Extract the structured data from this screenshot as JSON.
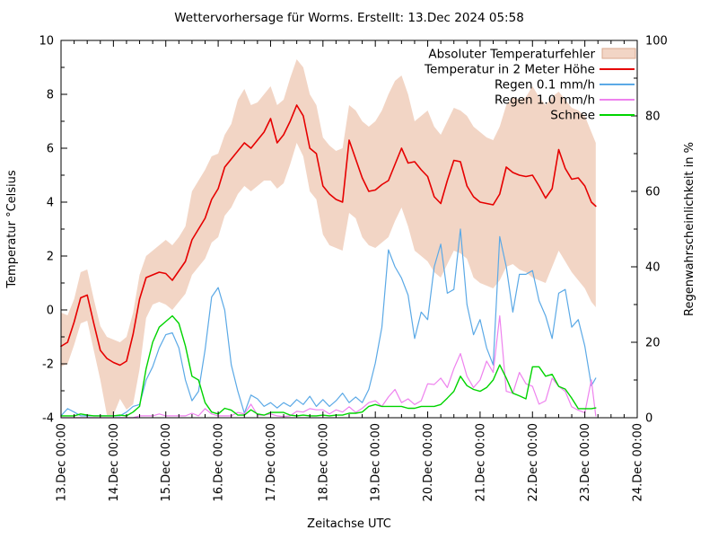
{
  "title": "Wettervorhersage für Worms. Erstellt: 13.Dec 2024 05:58",
  "axes": {
    "x": {
      "label": "Zeitachse UTC",
      "tick_labels": [
        "13.Dec 00:00",
        "14.Dec 00:00",
        "15.Dec 00:00",
        "16.Dec 00:00",
        "17.Dec 00:00",
        "18.Dec 00:00",
        "19.Dec 00:00",
        "20.Dec 00:00",
        "21.Dec 00:00",
        "22.Dec 00:00",
        "23.Dec 00:00",
        "24.Dec 00:00"
      ],
      "total_hours": 264,
      "minor_tick_hours": 6
    },
    "y_left": {
      "label": "Temperatur °Celsius",
      "min": -4,
      "max": 10,
      "tick_labels": [
        "-4",
        "-2",
        "0",
        "2",
        "4",
        "6",
        "8",
        "10"
      ],
      "major_step": 2,
      "minor_step": 1
    },
    "y_right": {
      "label": "Regenwahrscheinlichkeit in %",
      "min": 0,
      "max": 100,
      "tick_labels": [
        "0",
        "20",
        "40",
        "60",
        "80",
        "100"
      ],
      "major_step": 20,
      "minor_step": 10
    }
  },
  "legend": [
    {
      "label": "Absoluter Temperaturfehler",
      "swatch": "band",
      "color": "#f2d5c5",
      "border": "#d9a98f"
    },
    {
      "label": "Temperatur in 2 Meter Höhe",
      "swatch": "line",
      "color": "#e60000"
    },
    {
      "label": "Regen 0.1 mm/h",
      "swatch": "line",
      "color": "#5ba9e6"
    },
    {
      "label": "Regen 1.0 mm/h",
      "swatch": "line",
      "color": "#ee82ee"
    },
    {
      "label": "Schnee",
      "swatch": "line",
      "color": "#00d400"
    }
  ],
  "colors": {
    "band_fill": "#f2d5c5",
    "band_border": "#d9a98f",
    "temperature": "#e60000",
    "rain01": "#5ba9e6",
    "rain10": "#ee82ee",
    "snow": "#00d400",
    "axis": "#000000",
    "background": "#ffffff"
  },
  "chart_data": {
    "type": "line",
    "x_unit": "hours since 13.Dec 2024 00:00 UTC",
    "x_range_hours": [
      0,
      264
    ],
    "data_end_hour": 245,
    "grid": false,
    "legend_position": "top-right-inside",
    "x": [
      0,
      3,
      6,
      9,
      12,
      15,
      18,
      21,
      24,
      27,
      30,
      33,
      36,
      39,
      42,
      45,
      48,
      51,
      54,
      57,
      60,
      63,
      66,
      69,
      72,
      75,
      78,
      81,
      84,
      87,
      90,
      93,
      96,
      99,
      102,
      105,
      108,
      111,
      114,
      117,
      120,
      123,
      126,
      129,
      132,
      135,
      138,
      141,
      144,
      147,
      150,
      153,
      156,
      159,
      162,
      165,
      168,
      171,
      174,
      177,
      180,
      183,
      186,
      189,
      192,
      195,
      198,
      201,
      204,
      207,
      210,
      213,
      216,
      219,
      222,
      225,
      228,
      231,
      234,
      237,
      240,
      243,
      245
    ],
    "series": [
      {
        "name": "Absoluter Temperaturfehler",
        "type": "band",
        "axis": "left",
        "lower": [
          -2.1,
          -2.0,
          -1.3,
          -0.5,
          -0.4,
          -1.5,
          -2.6,
          -3.9,
          -3.9,
          -3.3,
          -3.7,
          -3.5,
          -2.2,
          -0.3,
          0.2,
          0.3,
          0.2,
          0.0,
          0.3,
          0.6,
          1.3,
          1.6,
          1.9,
          2.5,
          2.7,
          3.5,
          3.8,
          4.3,
          4.6,
          4.4,
          4.6,
          4.8,
          4.8,
          4.5,
          4.7,
          5.4,
          6.2,
          5.7,
          4.4,
          4.1,
          2.8,
          2.4,
          2.3,
          2.2,
          3.6,
          3.4,
          2.7,
          2.4,
          2.3,
          2.5,
          2.7,
          3.3,
          3.8,
          3.1,
          2.2,
          2.0,
          1.8,
          1.4,
          1.2,
          1.7,
          2.2,
          2.1,
          1.9,
          1.2,
          1.0,
          0.9,
          0.8,
          1.1,
          1.6,
          1.7,
          1.5,
          1.4,
          1.2,
          1.1,
          1.0,
          1.6,
          2.2,
          1.8,
          1.4,
          1.1,
          0.8,
          0.3,
          0.1
        ],
        "upper": [
          -0.1,
          -0.2,
          0.4,
          1.4,
          1.5,
          0.4,
          -0.6,
          -1.0,
          -1.1,
          -1.2,
          -1.0,
          -0.1,
          1.3,
          2.0,
          2.2,
          2.4,
          2.6,
          2.4,
          2.7,
          3.1,
          4.4,
          4.8,
          5.2,
          5.7,
          5.8,
          6.5,
          6.9,
          7.8,
          8.2,
          7.6,
          7.7,
          8.0,
          8.3,
          7.6,
          7.8,
          8.6,
          9.3,
          9.0,
          8.0,
          7.6,
          6.4,
          6.1,
          5.9,
          6.0,
          7.6,
          7.4,
          7.0,
          6.8,
          7.0,
          7.4,
          8.0,
          8.5,
          8.7,
          8.0,
          7.0,
          7.2,
          7.4,
          6.8,
          6.5,
          7.0,
          7.5,
          7.4,
          7.2,
          6.8,
          6.6,
          6.4,
          6.3,
          6.8,
          7.6,
          7.9,
          7.8,
          7.9,
          8.3,
          7.9,
          7.6,
          7.9,
          8.1,
          7.8,
          7.5,
          7.4,
          7.2,
          6.6,
          6.2
        ]
      },
      {
        "name": "Temperatur in 2 Meter Höhe",
        "type": "line",
        "axis": "left",
        "values": [
          -1.35,
          -1.2,
          -0.45,
          0.45,
          0.55,
          -0.5,
          -1.5,
          -1.8,
          -1.95,
          -2.05,
          -1.9,
          -0.9,
          0.4,
          1.2,
          1.3,
          1.4,
          1.35,
          1.1,
          1.45,
          1.8,
          2.6,
          3.0,
          3.4,
          4.1,
          4.5,
          5.3,
          5.6,
          5.9,
          6.2,
          6.0,
          6.3,
          6.6,
          7.1,
          6.2,
          6.5,
          7.0,
          7.6,
          7.2,
          6.0,
          5.8,
          4.6,
          4.3,
          4.1,
          4.0,
          6.3,
          5.6,
          4.9,
          4.4,
          4.45,
          4.65,
          4.8,
          5.4,
          6.0,
          5.45,
          5.5,
          5.2,
          4.95,
          4.2,
          3.95,
          4.8,
          5.55,
          5.5,
          4.6,
          4.2,
          4.0,
          3.95,
          3.9,
          4.3,
          5.3,
          5.1,
          5.0,
          4.95,
          5.0,
          4.6,
          4.15,
          4.5,
          5.95,
          5.25,
          4.85,
          4.9,
          4.6,
          4.0,
          3.85
        ]
      },
      {
        "name": "Regen 0.1 mm/h",
        "type": "line",
        "axis": "right",
        "values": [
          0.5,
          2.4,
          1.5,
          0.5,
          0.5,
          0.5,
          0.5,
          0.5,
          0.5,
          0.5,
          1.5,
          3,
          3.5,
          10,
          13.5,
          18.5,
          22,
          22.5,
          18.5,
          10,
          4.5,
          7,
          18,
          32,
          34.5,
          28.5,
          14,
          7,
          1.2,
          6,
          5,
          3,
          4,
          2.6,
          4,
          3,
          4.8,
          3.5,
          5.7,
          3,
          4.8,
          3,
          4.5,
          6.5,
          4,
          5.5,
          4,
          7.5,
          14.5,
          24,
          44.5,
          40,
          37,
          32.5,
          21,
          28,
          26,
          40,
          46,
          33,
          34,
          50,
          30,
          22,
          26,
          18.5,
          14,
          48,
          40,
          28,
          38,
          38,
          39,
          31,
          27,
          21,
          33,
          34,
          24,
          26,
          19,
          8.5,
          10.5
        ]
      },
      {
        "name": "Regen 1.0 mm/h",
        "type": "line",
        "axis": "right",
        "values": [
          0,
          0,
          0,
          0,
          0,
          0,
          0,
          0,
          0,
          0,
          0,
          0,
          0.5,
          0.5,
          0.5,
          1,
          0.5,
          0.5,
          0.5,
          0.5,
          1.2,
          0.5,
          2.4,
          1,
          0.5,
          0.5,
          0.5,
          1.4,
          1,
          3.6,
          0.7,
          0.7,
          1,
          0.5,
          0.3,
          0.5,
          1.7,
          1.5,
          2.4,
          2.1,
          2.1,
          1,
          2.1,
          1.5,
          2.9,
          1.4,
          2.5,
          4,
          4.5,
          3,
          5.5,
          7.5,
          4,
          5,
          3.5,
          4.5,
          9,
          8.8,
          10.5,
          8,
          13,
          17,
          11,
          8,
          10,
          15,
          12,
          27,
          7,
          6.5,
          12,
          9,
          8.3,
          3.6,
          4.5,
          10.5,
          8.3,
          7,
          2.9,
          2,
          1.3,
          10,
          0.5
        ]
      },
      {
        "name": "Schnee",
        "type": "line",
        "axis": "right",
        "values": [
          0.5,
          0.5,
          0.5,
          1,
          0.7,
          0.5,
          0.5,
          0.5,
          0.5,
          0.7,
          0.5,
          1.5,
          3,
          13,
          20,
          24,
          25.5,
          27,
          25,
          19,
          11,
          10,
          4,
          1.5,
          1,
          2.5,
          2,
          0.7,
          0.7,
          2.1,
          1,
          0.7,
          1.4,
          1.4,
          1.4,
          0.7,
          0.5,
          0.7,
          0.5,
          0.5,
          0.7,
          0.5,
          0.7,
          0.7,
          1.2,
          1.2,
          1.5,
          3,
          3.5,
          3,
          3,
          3,
          3,
          2.5,
          2.5,
          3,
          3,
          3,
          3.5,
          5.2,
          7,
          11,
          8.5,
          7.5,
          7,
          8,
          10,
          14,
          10.5,
          6.5,
          5.8,
          5,
          13.5,
          13.5,
          11,
          11.5,
          8.3,
          7.6,
          5.2,
          2.4,
          2.4,
          2.4,
          2.6
        ]
      }
    ]
  }
}
